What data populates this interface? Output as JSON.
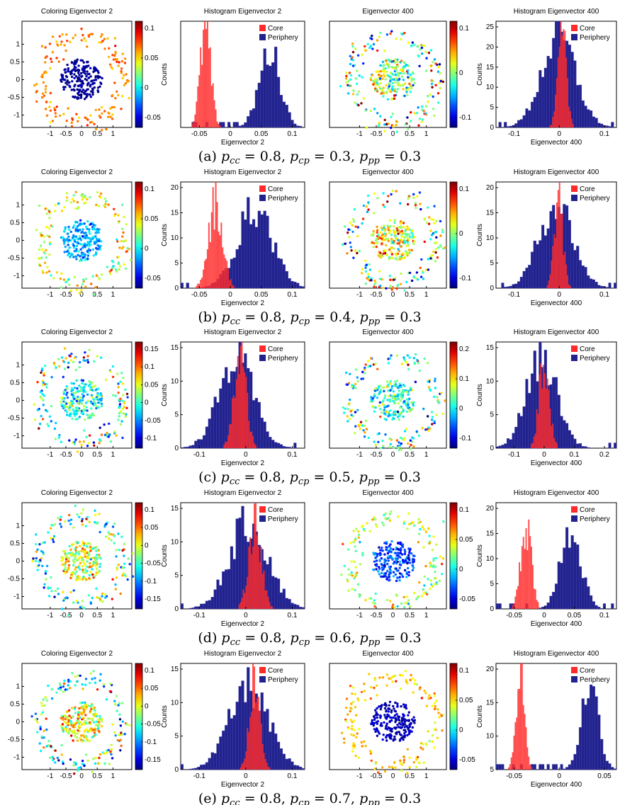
{
  "figure": {
    "rows": [
      {
        "caption": {
          "label": "(a)",
          "pcc": "0.8",
          "pcp": "0.3",
          "ppp": "0.3"
        },
        "panels": [
          {
            "kind": "scatter",
            "title": "Coloring Eigenvector 2",
            "xticks": [
              "-1",
              "-0.5",
              "0",
              "0.5",
              "1"
            ],
            "yticks": [
              "1",
              "0.5",
              "0",
              "-0.5",
              "-1"
            ],
            "colorbar_ticks": [
              "0.1",
              "0.05",
              "0",
              "-0.05"
            ],
            "core_level": 0.02,
            "periphery_level": 0.75,
            "spread": 0.08
          },
          {
            "kind": "hist",
            "title": "Histogram Eigenvector 2",
            "ylabel": "Counts",
            "xlabel": "Eigenvector 2",
            "xticks": [
              "-0.05",
              "0",
              "0.05",
              "0.1"
            ],
            "yticks": [],
            "legend": [
              "Core",
              "Periphery"
            ],
            "core": {
              "center": 0.2,
              "width": 0.06,
              "height": 0.95
            },
            "periphery": {
              "center": 0.72,
              "width": 0.12,
              "height": 0.72
            }
          },
          {
            "kind": "scatter",
            "title": "Eigenvector 400",
            "xticks": [
              "-1",
              "-0.5",
              "0",
              "0.5",
              "1"
            ],
            "yticks": [],
            "colorbar_ticks": [
              "0.1",
              "0",
              "-0.1"
            ],
            "core_level": 0.5,
            "periphery_level": 0.5,
            "spread": 0.45
          },
          {
            "kind": "hist",
            "title": "Histogram Eigenvector 400",
            "ylabel": "Counts",
            "xlabel": "Eigenvector 400",
            "xticks": [
              "-0.1",
              "0",
              "0.1"
            ],
            "yticks": [
              "25",
              "20",
              "15",
              "10",
              "5",
              "0"
            ],
            "legend": [
              "Core",
              "Periphery"
            ],
            "core": {
              "center": 0.55,
              "width": 0.05,
              "height": 0.9
            },
            "periphery": {
              "center": 0.52,
              "width": 0.2,
              "height": 0.85
            }
          }
        ]
      },
      {
        "caption": {
          "label": "(b)",
          "pcc": "0.8",
          "pcp": "0.4",
          "ppp": "0.3"
        },
        "panels": [
          {
            "kind": "scatter",
            "title": "Coloring Eigenvector 2",
            "xticks": [
              "-1",
              "-0.5",
              "0",
              "0.5",
              "1"
            ],
            "yticks": [
              "1",
              "0.5",
              "0",
              "-0.5",
              "-1"
            ],
            "colorbar_ticks": [
              "0.1",
              "0.05",
              "0",
              "-0.05"
            ],
            "core_level": 0.3,
            "periphery_level": 0.6,
            "spread": 0.2
          },
          {
            "kind": "hist",
            "title": "Histogram Eigenvector 2",
            "ylabel": "Counts",
            "xlabel": "Eigenvector 2",
            "xticks": [
              "-0.05",
              "0",
              "0.05",
              "0.1"
            ],
            "yticks": [
              "20",
              "15",
              "10",
              "5",
              "0"
            ],
            "legend": [
              "Core",
              "Periphery"
            ],
            "core": {
              "center": 0.28,
              "width": 0.08,
              "height": 0.85
            },
            "periphery": {
              "center": 0.6,
              "width": 0.2,
              "height": 0.75
            }
          },
          {
            "kind": "scatter",
            "title": "Eigenvector 400",
            "xticks": [
              "-1",
              "-0.5",
              "0",
              "0.5",
              "1"
            ],
            "yticks": [],
            "colorbar_ticks": [
              "0.1",
              "0",
              "-0.1"
            ],
            "core_level": 0.62,
            "periphery_level": 0.5,
            "spread": 0.4
          },
          {
            "kind": "hist",
            "title": "Histogram Eigenvector 400",
            "ylabel": "Counts",
            "xlabel": "Eigenvector 400",
            "xticks": [
              "-0.1",
              "0",
              "0.1"
            ],
            "yticks": [
              "20",
              "15",
              "10",
              "5",
              "0"
            ],
            "legend": [
              "Core",
              "Periphery"
            ],
            "core": {
              "center": 0.52,
              "width": 0.05,
              "height": 0.9
            },
            "periphery": {
              "center": 0.5,
              "width": 0.2,
              "height": 0.8
            }
          }
        ]
      },
      {
        "caption": {
          "label": "(c)",
          "pcc": "0.8",
          "pcp": "0.5",
          "ppp": "0.3"
        },
        "panels": [
          {
            "kind": "scatter",
            "title": "Coloring Eigenvector 2",
            "xticks": [
              "-1",
              "-0.5",
              "0",
              "0.5",
              "1"
            ],
            "yticks": [
              "1",
              "0.5",
              "0",
              "-0.5",
              "-1"
            ],
            "colorbar_ticks": [
              "0.15",
              "0.1",
              "0.05",
              "0",
              "-0.05",
              "-0.1"
            ],
            "core_level": 0.4,
            "periphery_level": 0.45,
            "spread": 0.35
          },
          {
            "kind": "hist",
            "title": "Histogram Eigenvector 2",
            "ylabel": "Counts",
            "xlabel": "Eigenvector 2",
            "xticks": [
              "-0.1",
              "0",
              "0.1"
            ],
            "yticks": [
              "15",
              "10",
              "5",
              "0"
            ],
            "legend": [
              "Core",
              "Periphery"
            ],
            "core": {
              "center": 0.48,
              "width": 0.07,
              "height": 0.9
            },
            "periphery": {
              "center": 0.45,
              "width": 0.2,
              "height": 0.82
            }
          },
          {
            "kind": "scatter",
            "title": "Eigenvector 400",
            "xticks": [
              "-1",
              "-0.5",
              "0",
              "0.5",
              "1"
            ],
            "yticks": [],
            "colorbar_ticks": [
              "0.2",
              "0.1",
              "0",
              "-0.1"
            ],
            "core_level": 0.4,
            "periphery_level": 0.45,
            "spread": 0.35
          },
          {
            "kind": "hist",
            "title": "Histogram Eigenvector 400",
            "ylabel": "Counts",
            "xlabel": "Eigenvector 400",
            "xticks": [
              "-0.1",
              "0",
              "0.1",
              "0.2"
            ],
            "yticks": [
              "15",
              "10",
              "5",
              "0"
            ],
            "legend": [
              "Core",
              "Periphery"
            ],
            "core": {
              "center": 0.4,
              "width": 0.06,
              "height": 0.9
            },
            "periphery": {
              "center": 0.38,
              "width": 0.18,
              "height": 0.85
            }
          }
        ]
      },
      {
        "caption": {
          "label": "(d)",
          "pcc": "0.8",
          "pcp": "0.6",
          "ppp": "0.3"
        },
        "panels": [
          {
            "kind": "scatter",
            "title": "Coloring Eigenvector 2",
            "xticks": [
              "-1",
              "-0.5",
              "0",
              "0.5",
              "1"
            ],
            "yticks": [
              "1",
              "0.5",
              "0",
              "-0.5",
              "-1"
            ],
            "colorbar_ticks": [
              "0.1",
              "0.05",
              "0",
              "-0.05",
              "-0.1",
              "-0.15"
            ],
            "core_level": 0.6,
            "periphery_level": 0.45,
            "spread": 0.35
          },
          {
            "kind": "hist",
            "title": "Histogram Eigenvector 2",
            "ylabel": "Counts",
            "xlabel": "Eigenvector 2",
            "xticks": [
              "-0.1",
              "0",
              "0.1"
            ],
            "yticks": [
              "15",
              "10",
              "5",
              "0"
            ],
            "legend": [
              "Core",
              "Periphery"
            ],
            "core": {
              "center": 0.6,
              "width": 0.07,
              "height": 0.92
            },
            "periphery": {
              "center": 0.55,
              "width": 0.22,
              "height": 0.82
            }
          },
          {
            "kind": "scatter",
            "title": "Eigenvector 400",
            "xticks": [
              "-1",
              "-0.5",
              "0",
              "0.5",
              "1"
            ],
            "yticks": [],
            "colorbar_ticks": [
              "0.1",
              "0.05",
              "0",
              "-0.05"
            ],
            "core_level": 0.18,
            "periphery_level": 0.55,
            "spread": 0.2
          },
          {
            "kind": "hist",
            "title": "Histogram Eigenvector 400",
            "ylabel": "Counts",
            "xlabel": "Eigenvector 400",
            "xticks": [
              "-0.05",
              "0",
              "0.05",
              "0.1"
            ],
            "yticks": [
              "20",
              "15",
              "10",
              "5",
              "0"
            ],
            "legend": [
              "Core",
              "Periphery"
            ],
            "core": {
              "center": 0.25,
              "width": 0.06,
              "height": 0.88
            },
            "periphery": {
              "center": 0.62,
              "width": 0.12,
              "height": 0.75
            }
          }
        ]
      },
      {
        "caption": {
          "label": "(e)",
          "pcc": "0.8",
          "pcp": "0.7",
          "ppp": "0.3"
        },
        "panels": [
          {
            "kind": "scatter",
            "title": "Coloring Eigenvector 2",
            "xticks": [
              "-1",
              "-0.5",
              "0",
              "0.5",
              "1"
            ],
            "yticks": [
              "1",
              "0.5",
              "0",
              "-0.5",
              "-1"
            ],
            "colorbar_ticks": [
              "0.1",
              "0.05",
              "0",
              "-0.05",
              "-0.1",
              "-0.15"
            ],
            "core_level": 0.62,
            "periphery_level": 0.45,
            "spread": 0.35
          },
          {
            "kind": "hist",
            "title": "Histogram Eigenvector 2",
            "ylabel": "Counts",
            "xlabel": "Eigenvector 2",
            "xticks": [
              "-0.1",
              "0",
              "0.1"
            ],
            "yticks": [
              "15",
              "10",
              "5",
              "0"
            ],
            "legend": [
              "Core",
              "Periphery"
            ],
            "core": {
              "center": 0.6,
              "width": 0.06,
              "height": 0.95
            },
            "periphery": {
              "center": 0.55,
              "width": 0.22,
              "height": 0.78
            }
          },
          {
            "kind": "scatter",
            "title": "Eigenvector 400",
            "xticks": [
              "-1",
              "-0.5",
              "0",
              "0.5",
              "1"
            ],
            "yticks": [],
            "colorbar_ticks": [
              "0.1",
              "0.05",
              "0",
              "-0.05"
            ],
            "core_level": 0.05,
            "periphery_level": 0.68,
            "spread": 0.1
          },
          {
            "kind": "hist",
            "title": "Histogram Eigenvector 400",
            "ylabel": "Counts",
            "xlabel": "Eigenvector 400",
            "xticks": [
              "-0.05",
              "0",
              "0.05"
            ],
            "yticks": [
              "20",
              "15",
              "10",
              "5"
            ],
            "legend": [
              "Core",
              "Periphery"
            ],
            "core": {
              "center": 0.2,
              "width": 0.05,
              "height": 0.92
            },
            "periphery": {
              "center": 0.78,
              "width": 0.1,
              "height": 0.8
            }
          }
        ]
      }
    ]
  }
}
